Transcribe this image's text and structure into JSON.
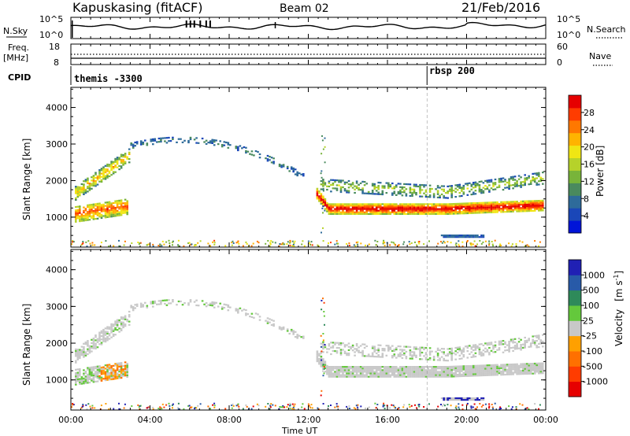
{
  "header": {
    "station": "Kapuskasing (fitACF)",
    "beam": "Beam 02",
    "date": "21/Feb/2016"
  },
  "side_labels": {
    "nsky": "N.Sky",
    "nsearch": "N.Search",
    "freq_line1": "Freq.",
    "freq_line2": "[MHz]",
    "nave": "Nave",
    "cpid": "CPID"
  },
  "noise_panel": {
    "left_ticks": [
      "10^5",
      "10^0"
    ],
    "right_ticks": [
      "10^5",
      "10^0"
    ]
  },
  "freq_panel": {
    "left_ticks": [
      "18",
      "8"
    ],
    "right_ticks": [
      "60",
      "0"
    ]
  },
  "cpid_panel": {
    "labels": [
      "themis -3300",
      "rbsp 200"
    ],
    "boundaries_ut": [
      0,
      18.0
    ]
  },
  "chart_data": [
    {
      "type": "heatmap",
      "panel": "power",
      "ylabel": "Slant Range [km]",
      "y_ticks": [
        "1000",
        "2000",
        "3000",
        "4000"
      ],
      "ylim": [
        180,
        4550
      ],
      "colorbar": {
        "title": "Power [dB]",
        "ticks": [
          "4",
          "8",
          "12",
          "16",
          "20",
          "24",
          "28"
        ],
        "colors": [
          "#0014d8",
          "#1a47b8",
          "#2e6b9a",
          "#4a8a5e",
          "#78b43a",
          "#b6d22a",
          "#f0e614",
          "#ffb400",
          "#ff7800",
          "#ff3c00",
          "#e60000"
        ]
      }
    },
    {
      "type": "heatmap",
      "panel": "velocity",
      "ylabel": "Slant Range [km]",
      "y_ticks": [
        "1000",
        "2000",
        "3000",
        "4000"
      ],
      "ylim": [
        180,
        4550
      ],
      "colorbar": {
        "title_main": "Velocity",
        "title_unit": "[m s",
        "title_sup": "-1",
        "title_end": "]",
        "ticks": [
          "1000",
          "500",
          "100",
          "25",
          "-25",
          "-100",
          "-500",
          "-1000"
        ],
        "colors": [
          "#2020b4",
          "#285aa8",
          "#2e8a5a",
          "#64c83c",
          "#c8c8c8",
          "#ffa000",
          "#ff7000",
          "#ff3c00",
          "#e60000"
        ]
      }
    }
  ],
  "x_axis": {
    "title": "Time UT",
    "tick_labels": [
      "00:00",
      "04:00",
      "08:00",
      "12:00",
      "16:00",
      "20:00",
      "00:00"
    ],
    "xlim": [
      0,
      24
    ]
  }
}
